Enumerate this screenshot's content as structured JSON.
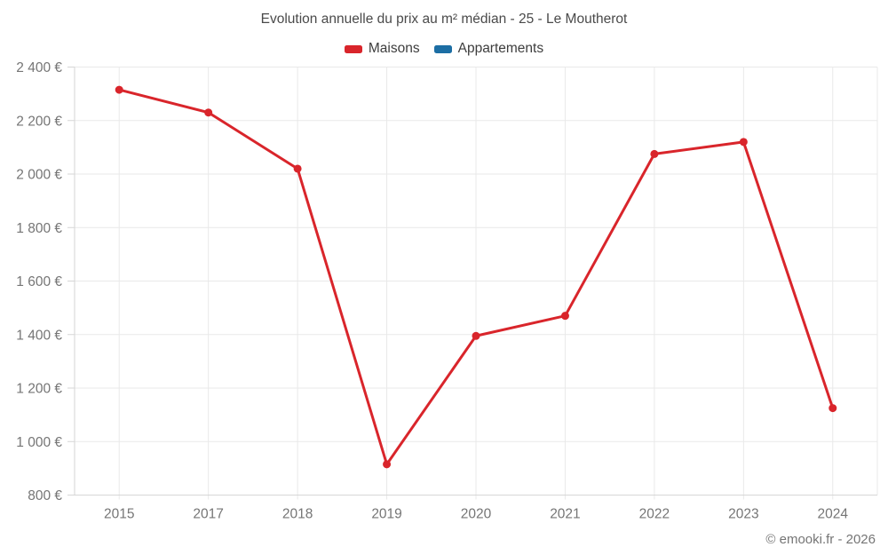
{
  "header": {
    "title": "Evolution annuelle du prix au m² médian - 25 - Le Moutherot"
  },
  "legend": {
    "items": [
      {
        "label": "Maisons",
        "color": "#d9252b"
      },
      {
        "label": "Appartements",
        "color": "#1c6ea4"
      }
    ]
  },
  "footer": {
    "copyright": "© emooki.fr - 2026"
  },
  "colors": {
    "grid": "#e9e9e9",
    "axis": "#d6d6d6",
    "tick_text": "#757575",
    "title_text": "#4a4a4a",
    "background": "#ffffff"
  },
  "chart_data": {
    "type": "line",
    "title": "Evolution annuelle du prix au m² médian - 25 - Le Moutherot",
    "categories": [
      "2015",
      "2017",
      "2018",
      "2019",
      "2020",
      "2021",
      "2022",
      "2023",
      "2024"
    ],
    "series": [
      {
        "name": "Maisons",
        "color": "#d9252b",
        "values": [
          2315,
          2230,
          2020,
          915,
          1395,
          1470,
          2075,
          2120,
          1125
        ]
      },
      {
        "name": "Appartements",
        "color": "#1c6ea4",
        "values": []
      }
    ],
    "xlabel": "",
    "ylabel": "",
    "ylim": [
      800,
      2400
    ],
    "ytick_step": 200,
    "y_ticks": [
      {
        "value": 800,
        "label": "800 €"
      },
      {
        "value": 1000,
        "label": "1 000 €"
      },
      {
        "value": 1200,
        "label": "1 200 €"
      },
      {
        "value": 1400,
        "label": "1 400 €"
      },
      {
        "value": 1600,
        "label": "1 600 €"
      },
      {
        "value": 1800,
        "label": "1 800 €"
      },
      {
        "value": 2000,
        "label": "2 000 €"
      },
      {
        "value": 2200,
        "label": "2 200 €"
      },
      {
        "value": 2400,
        "label": "2 400 €"
      }
    ],
    "grid": true,
    "legend_position": "top",
    "annotations": [
      "© emooki.fr - 2026"
    ]
  }
}
